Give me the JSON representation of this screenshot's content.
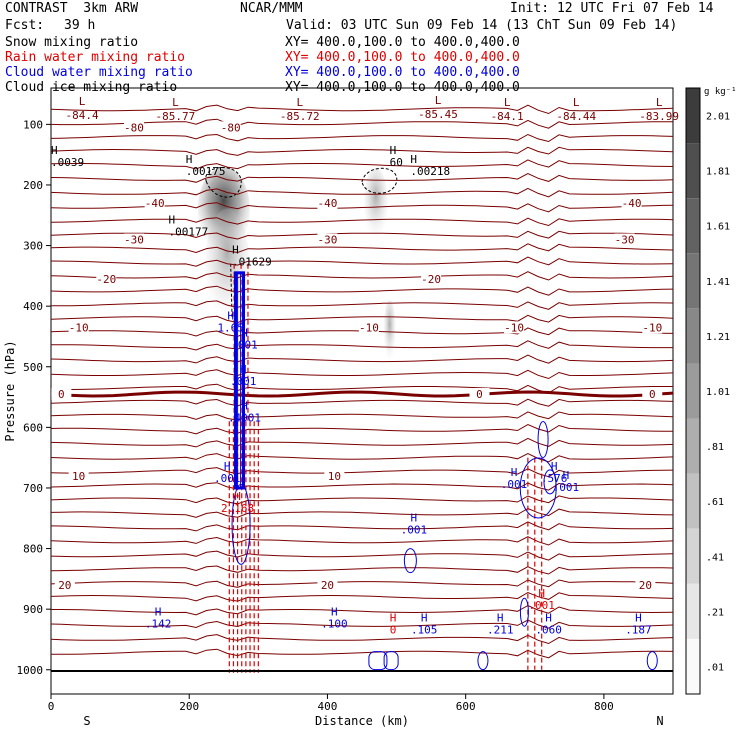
{
  "header": {
    "model": "CONTRAST  3km ARW",
    "org": "NCAR/MMM",
    "init": "Init: 12 UTC Fri 07 Feb 14",
    "fcst_label": "Fcst:",
    "fcst_value": "39 h",
    "valid": "Valid: 03 UTC Sun 09 Feb 14 (13 ChT Sun 09 Feb 14)",
    "fields": [
      {
        "name": "Snow mixing ratio",
        "xy": "XY= 400.0,100.0 to 400.0,400.0",
        "color": "#000000"
      },
      {
        "name": "Rain water mixing ratio",
        "xy": "XY= 400.0,100.0 to 400.0,400.0",
        "color": "#e00000"
      },
      {
        "name": "Cloud water mixing ratio",
        "xy": "XY= 400.0,100.0 to 400.0,400.0",
        "color": "#0000e0"
      },
      {
        "name": "Cloud ice mixing ratio",
        "xy": "XY= 400.0,100.0 to 400.0,400.0",
        "color": "#000000"
      }
    ]
  },
  "chart_data": {
    "type": "heatmap",
    "xlabel": "Distance (km)",
    "ylabel": "Pressure (hPa)",
    "xlim": [
      0,
      900
    ],
    "ylim": [
      1000,
      40
    ],
    "x_ticks": [
      0,
      200,
      400,
      600,
      800
    ],
    "y_ticks": [
      100,
      200,
      300,
      400,
      500,
      600,
      700,
      800,
      900,
      1000
    ],
    "endpoints": {
      "left": "S",
      "right": "N"
    },
    "colorbar": {
      "unit": "g kg⁻¹",
      "ticks": [
        "2.01",
        "1.81",
        "1.61",
        "1.41",
        "1.21",
        "1.01",
        ".81",
        ".61",
        ".41",
        ".21",
        ".01"
      ]
    },
    "temperature_contours": [
      {
        "p": 105,
        "label": "-80",
        "label_x": [
          120,
          260
        ]
      },
      {
        "p": 230,
        "label": "-40",
        "label_x": [
          150,
          400,
          840
        ]
      },
      {
        "p": 290,
        "label": "-30",
        "label_x": [
          120,
          400,
          830
        ]
      },
      {
        "p": 355,
        "label": "-20",
        "label_x": [
          80,
          550
        ]
      },
      {
        "p": 435,
        "label": "-10",
        "label_x": [
          40,
          460,
          670,
          870
        ]
      },
      {
        "p": 545,
        "label": "0",
        "label_x": [
          15,
          620,
          870
        ]
      },
      {
        "p": 680,
        "label": "10",
        "label_x": [
          40,
          410
        ]
      },
      {
        "p": 860,
        "label": "20",
        "label_x": [
          20,
          400,
          860
        ]
      }
    ],
    "lows": [
      {
        "x": 45,
        "p": 68,
        "value": "-84.4"
      },
      {
        "x": 180,
        "p": 70,
        "value": "-85.77"
      },
      {
        "x": 360,
        "p": 70,
        "value": "-85.72"
      },
      {
        "x": 560,
        "p": 66,
        "value": "-85.45"
      },
      {
        "x": 660,
        "p": 70,
        "value": "-84.1"
      },
      {
        "x": 760,
        "p": 70,
        "value": "-84.44"
      },
      {
        "x": 880,
        "p": 70,
        "value": "-83.99"
      }
    ],
    "snow_maxima": [
      {
        "x": 195,
        "p": 180,
        "value": ".00175"
      },
      {
        "x": 170,
        "p": 280,
        "value": ".00177"
      },
      {
        "x": 262,
        "p": 330,
        "value": ".01629"
      },
      {
        "x": 520,
        "p": 180,
        "value": ".00218"
      },
      {
        "x": 0,
        "p": 165,
        "value": ".0039"
      },
      {
        "x": 490,
        "p": 165,
        "value": "60"
      }
    ],
    "cloud_water_maxima": [
      {
        "x": 155,
        "p": 930,
        "value": ".142"
      },
      {
        "x": 410,
        "p": 930,
        "value": ".100"
      },
      {
        "x": 540,
        "p": 940,
        "value": ".105"
      },
      {
        "x": 650,
        "p": 940,
        "value": ".211"
      },
      {
        "x": 720,
        "p": 940,
        "value": ".060"
      },
      {
        "x": 850,
        "p": 940,
        "value": ".187"
      },
      {
        "x": 525,
        "p": 775,
        "value": ".001"
      },
      {
        "x": 670,
        "p": 700,
        "value": ".001"
      },
      {
        "x": 728,
        "p": 690,
        "value": ".576"
      },
      {
        "x": 745,
        "p": 705,
        "value": ".001"
      },
      {
        "x": 260,
        "p": 442,
        "value": "1.65"
      },
      {
        "x": 280,
        "p": 470,
        "value": ".001"
      },
      {
        "x": 278,
        "p": 530,
        "value": ".001"
      },
      {
        "x": 280,
        "p": 590,
        "value": ".4001"
      },
      {
        "x": 255,
        "p": 690,
        "value": ".001"
      }
    ],
    "rain_maxima": [
      {
        "x": 270,
        "p": 740,
        "value": "2.168"
      },
      {
        "x": 495,
        "p": 940,
        "value": "0"
      },
      {
        "x": 710,
        "p": 900,
        "value": ".001"
      }
    ]
  }
}
